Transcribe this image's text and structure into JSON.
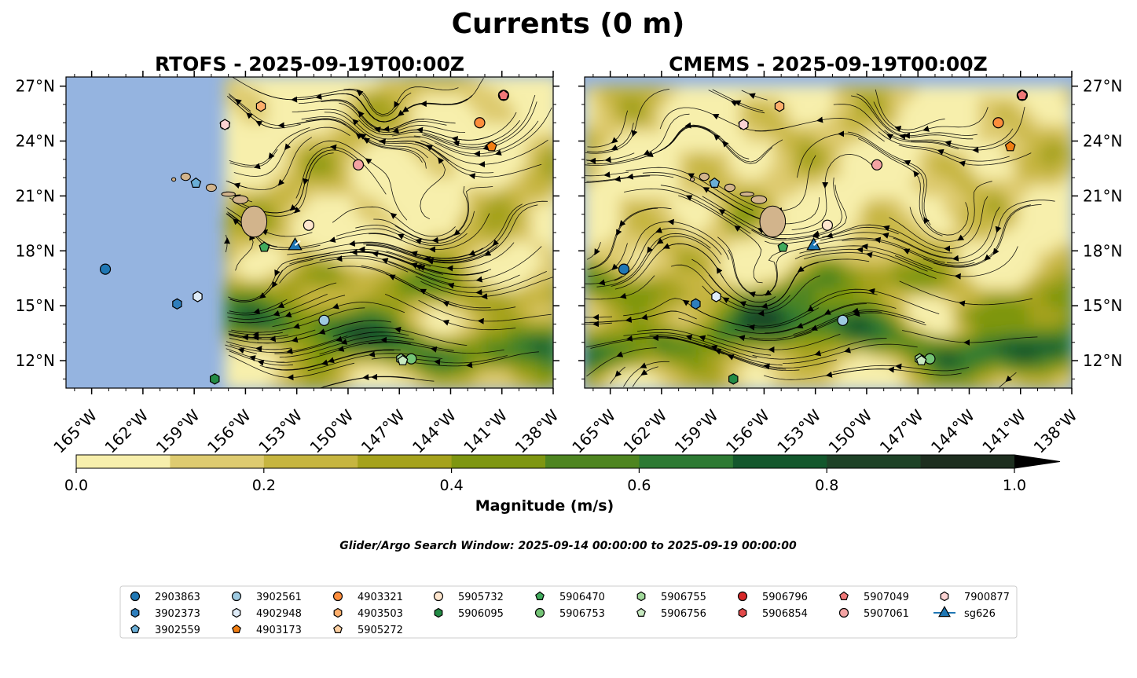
{
  "chart_data": {
    "type": "heatmap",
    "title": "Currents (0 m)",
    "colorbar": {
      "label": "Magnitude (m/s)",
      "ticks": [
        "0.0",
        "0.2",
        "0.4",
        "0.6",
        "0.8",
        "1.0"
      ],
      "range": [
        0,
        1.0
      ],
      "levels": [
        0,
        0.1,
        0.2,
        0.3,
        0.4,
        0.5,
        0.6,
        0.7,
        0.8,
        0.9,
        1.0
      ],
      "colors": [
        "#f7efac",
        "#decb70",
        "#c6b540",
        "#a5a21c",
        "#7e9611",
        "#4e8520",
        "#2d7a33",
        "#13572c",
        "#1e4227",
        "#1d2e1f"
      ],
      "extend": "max"
    },
    "lon_range": [
      -166.5,
      -138
    ],
    "lat_range": [
      10.5,
      27.5
    ],
    "lon_ticks": [
      "165°W",
      "162°W",
      "159°W",
      "156°W",
      "153°W",
      "150°W",
      "147°W",
      "144°W",
      "141°W",
      "138°W"
    ],
    "lat_ticks": [
      "12°N",
      "15°N",
      "18°N",
      "21°N",
      "24°N",
      "27°N"
    ],
    "panels": [
      {
        "title": "RTOFS - 2025-09-19T00:00Z",
        "data_lon_min": -157.2,
        "data_lat_max": 27.5
      },
      {
        "title": "CMEMS - 2025-09-19T00:00Z",
        "data_lon_min": -166.5,
        "data_lat_max": 26.9
      }
    ],
    "search_window": "Glider/Argo Search Window: 2025-09-14 00:00:00 to 2025-09-19 00:00:00",
    "platforms": [
      {
        "name": "2903863",
        "marker": "o",
        "color": "#1f77b4",
        "lon": -164.2,
        "lat": 17.0
      },
      {
        "name": "3902373",
        "marker": "h",
        "color": "#2e7ebc",
        "lon": -160.0,
        "lat": 15.1
      },
      {
        "name": "3902559",
        "marker": "p",
        "color": "#6aaed6",
        "lon": -158.9,
        "lat": 21.7
      },
      {
        "name": "3902561",
        "marker": "o",
        "color": "#9ecae1",
        "lon": -151.4,
        "lat": 14.2
      },
      {
        "name": "4902948",
        "marker": "h",
        "color": "#deebf7",
        "lon": -158.8,
        "lat": 15.5
      },
      {
        "name": "4903173",
        "marker": "p",
        "color": "#f07e13",
        "lon": -141.6,
        "lat": 23.7
      },
      {
        "name": "4903321",
        "marker": "o",
        "color": "#fd8d3c",
        "lon": -142.3,
        "lat": 25.0
      },
      {
        "name": "4903503",
        "marker": "h",
        "color": "#fdae6b",
        "lon": -155.1,
        "lat": 25.9
      },
      {
        "name": "5905272",
        "marker": "p",
        "color": "#fdd0a2",
        "lon": -157.2,
        "lat": 24.9
      },
      {
        "name": "5905732",
        "marker": "o",
        "color": "#fee6ce",
        "lon": -152.3,
        "lat": 19.4
      },
      {
        "name": "5906095",
        "marker": "h",
        "color": "#238b45",
        "lon": -157.8,
        "lat": 11.0
      },
      {
        "name": "5906470",
        "marker": "p",
        "color": "#41ab5d",
        "lon": -154.9,
        "lat": 18.2
      },
      {
        "name": "5906753",
        "marker": "o",
        "color": "#74c476",
        "lon": -146.3,
        "lat": 12.1
      },
      {
        "name": "5906755",
        "marker": "h",
        "color": "#a1d99b",
        "lon": -146.9,
        "lat": 12.1
      },
      {
        "name": "5906756",
        "marker": "p",
        "color": "#c7e9c0",
        "lon": -146.8,
        "lat": 12.0
      },
      {
        "name": "5906796",
        "marker": "o",
        "color": "#d62728",
        "lon": -140.9,
        "lat": 26.5
      },
      {
        "name": "5906854",
        "marker": "h",
        "color": "#e34a4a",
        "lon": -140.9,
        "lat": 26.5
      },
      {
        "name": "5907049",
        "marker": "p",
        "color": "#f07878",
        "lon": -140.9,
        "lat": 26.5
      },
      {
        "name": "5907061",
        "marker": "o",
        "color": "#f4a3a3",
        "lon": -149.4,
        "lat": 22.7
      },
      {
        "name": "7900877",
        "marker": "h",
        "color": "#fbd2d2",
        "lon": -157.2,
        "lat": 24.9
      },
      {
        "name": "sg626",
        "marker": "^",
        "color": "#1f77b4",
        "line": true,
        "lon": -153.1,
        "lat": 18.3
      }
    ],
    "glider_track": [
      [
        -153.1,
        18.3
      ],
      [
        -152.8,
        18.55
      ]
    ]
  }
}
